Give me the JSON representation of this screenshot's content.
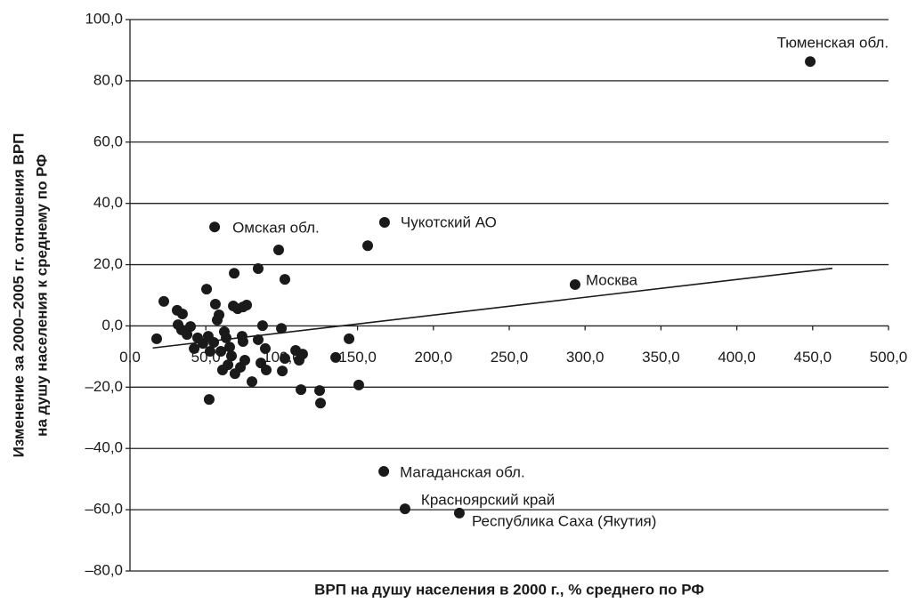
{
  "chart_data": {
    "type": "scatter",
    "xlabel": "ВРП на душу населения в 2000 г., % среднего по РФ",
    "ylabel": [
      "Изменение за 2000–2005 гг. отношения ВРП",
      "на душу населения к среднему по РФ"
    ],
    "xlim": [
      0,
      500
    ],
    "ylim": [
      -80,
      100
    ],
    "xticks": [
      {
        "value": 0,
        "label": "0,0"
      },
      {
        "value": 50,
        "label": "50,0"
      },
      {
        "value": 100,
        "label": "100,0"
      },
      {
        "value": 150,
        "label": "150,0"
      },
      {
        "value": 200,
        "label": "200,0"
      },
      {
        "value": 250,
        "label": "250,0"
      },
      {
        "value": 300,
        "label": "300,0"
      },
      {
        "value": 350,
        "label": "350,0"
      },
      {
        "value": 400,
        "label": "400,0"
      },
      {
        "value": 450,
        "label": "450,0"
      },
      {
        "value": 500,
        "label": "500,0"
      }
    ],
    "yticks": [
      {
        "value": -80,
        "label": "–80,0"
      },
      {
        "value": -60,
        "label": "–60,0"
      },
      {
        "value": -40,
        "label": "–40,0"
      },
      {
        "value": -20,
        "label": "–20,0"
      },
      {
        "value": 0,
        "label": "0,0"
      },
      {
        "value": 20,
        "label": "20,0"
      },
      {
        "value": 40,
        "label": "40,0"
      },
      {
        "value": 60,
        "label": "60,0"
      },
      {
        "value": 80,
        "label": "80,0"
      },
      {
        "value": 100,
        "label": "100,0"
      }
    ],
    "grid": true,
    "color": "#1a1a1a",
    "x": [
      448.4,
      55.8,
      167.8,
      293.4,
      167.3,
      181.3,
      217.1,
      156.7,
      17.6,
      22.3,
      31.1,
      34.6,
      31.7,
      34.0,
      37.6,
      39.9,
      42.3,
      44.6,
      48.1,
      50.5,
      51.6,
      52.8,
      55.2,
      52.2,
      56.3,
      57.5,
      58.7,
      59.9,
      61.0,
      62.2,
      63.4,
      64.6,
      65.7,
      66.9,
      68.1,
      69.2,
      68.7,
      71.0,
      72.8,
      74.5,
      73.9,
      76.9,
      75.7,
      74.5,
      80.4,
      84.5,
      84.5,
      86.3,
      87.4,
      89.2,
      89.8,
      98.0,
      99.8,
      100.4,
      102.1,
      102.1,
      109.2,
      111.5,
      113.8,
      112.7,
      125.0,
      125.6,
      135.6,
      144.4,
      150.8
    ],
    "y": [
      86.3,
      32.3,
      33.8,
      13.5,
      -47.5,
      -59.7,
      -61.1,
      26.2,
      -4.2,
      8.0,
      5.1,
      3.9,
      0.4,
      -1.3,
      -2.8,
      -0.2,
      -7.4,
      -3.9,
      -5.7,
      12.0,
      -3.4,
      -8.3,
      -5.4,
      -24.0,
      7.1,
      1.9,
      3.6,
      -8.3,
      -14.4,
      -1.9,
      -3.9,
      -12.7,
      -6.9,
      -9.8,
      6.5,
      -15.6,
      17.2,
      5.6,
      -13.5,
      6.2,
      -3.4,
      6.8,
      -11.2,
      -5.1,
      -18.2,
      18.7,
      -4.5,
      -12.1,
      0.1,
      -7.4,
      -14.4,
      24.8,
      -0.8,
      -14.7,
      15.2,
      -10.6,
      -8.0,
      -11.2,
      -9.2,
      -20.8,
      -21.1,
      -25.2,
      -10.3,
      -4.2,
      -19.3
    ],
    "point_labels": [
      "Тюменская обл.",
      "Омская обл.",
      "Чукотский АО",
      "Москва",
      "Магаданская обл.",
      "Красноярский край",
      "Республика Саха (Якутия)",
      null,
      null,
      null,
      null,
      null,
      null,
      null,
      null,
      null,
      null,
      null,
      null,
      null,
      null,
      null,
      null,
      null,
      null,
      null,
      null,
      null,
      null,
      null,
      null,
      null,
      null,
      null,
      null,
      null,
      null,
      null,
      null,
      null,
      null,
      null,
      null,
      null,
      null,
      null,
      null,
      null,
      null,
      null,
      null,
      null,
      null,
      null,
      null,
      null,
      null,
      null,
      null,
      null,
      null,
      null,
      null,
      null,
      null
    ],
    "trendline": {
      "x": [
        15,
        463
      ],
      "y": [
        -7.2,
        18.8
      ]
    }
  }
}
